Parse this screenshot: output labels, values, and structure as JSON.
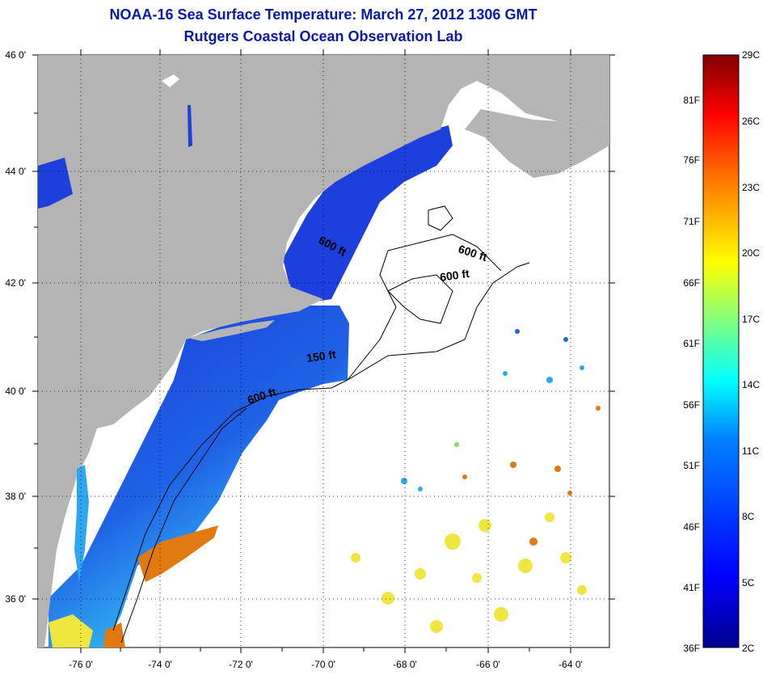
{
  "title": {
    "line1": "NOAA-16 Sea Surface Temperature:  March 27, 2012 1306 GMT",
    "line2": "Rutgers Coastal Ocean Observation Lab"
  },
  "map": {
    "lat_labels": [
      "46 0'",
      "44 0'",
      "42 0'",
      "40 0'",
      "38 0'",
      "36 0'"
    ],
    "lon_labels": [
      "-76 0'",
      "-74 0'",
      "-72 0'",
      "-70 0'",
      "-68 0'",
      "-66 0'",
      "-64 0'"
    ],
    "contour_labels": [
      "600 ft",
      "600 ft",
      "600 ft",
      "150 ft",
      "600 ft"
    ],
    "colors": {
      "land": "#b4b4b4",
      "water_cold": "#1a3ad8",
      "water_mid": "#2fa6f0",
      "water_warm": "#f0e640",
      "water_hot": "#e07a10"
    }
  },
  "colorbar": {
    "celsius_labels": [
      "29C",
      "26C",
      "23C",
      "20C",
      "17C",
      "14C",
      "11C",
      "8C",
      "5C",
      "2C"
    ],
    "fahrenheit_labels": [
      "81F",
      "76F",
      "71F",
      "66F",
      "61F",
      "56F",
      "51F",
      "46F",
      "41F",
      "36F"
    ],
    "gradient_stops": [
      "#00008f",
      "#0000ff",
      "#0080ff",
      "#00ffff",
      "#80ff80",
      "#ffff00",
      "#ff8000",
      "#ff0000",
      "#800000"
    ]
  }
}
